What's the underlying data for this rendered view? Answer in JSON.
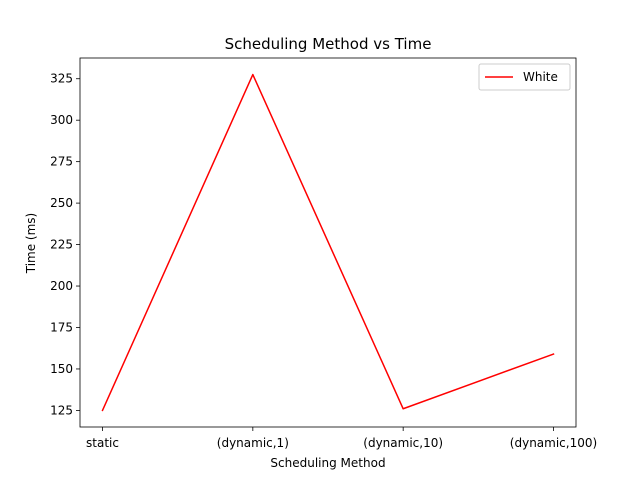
{
  "chart_data": {
    "type": "line",
    "title": "Scheduling Method vs Time",
    "xlabel": "Scheduling Method",
    "ylabel": "Time (ms)",
    "categories": [
      "static",
      "(dynamic,1)",
      "(dynamic,10)",
      "(dynamic,100)"
    ],
    "series": [
      {
        "name": "White",
        "color": "#ff0000",
        "values": [
          125,
          327.5,
          126,
          159
        ]
      }
    ],
    "yticks": [
      125,
      150,
      175,
      200,
      225,
      250,
      275,
      300,
      325
    ],
    "ylim": [
      115,
      337.5
    ],
    "grid": false,
    "legend_position": "top-right"
  }
}
